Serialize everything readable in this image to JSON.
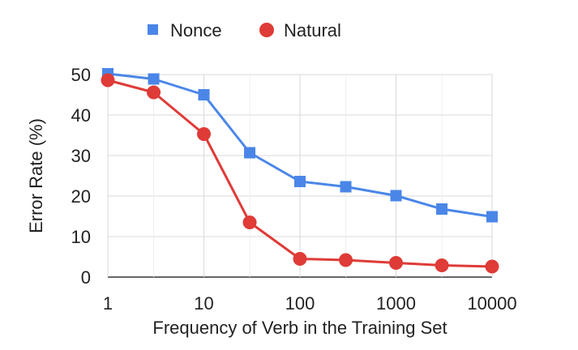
{
  "chart_data": {
    "type": "line",
    "title": "",
    "xlabel": "Frequency of Verb in the Training Set",
    "ylabel": "Error Rate (%)",
    "x_scale": "log",
    "x": [
      1,
      3,
      10,
      30,
      100,
      300,
      1000,
      3000,
      10000
    ],
    "x_ticks": [
      1,
      10,
      100,
      1000,
      10000
    ],
    "x_tick_labels": [
      "1",
      "10",
      "100",
      "1000",
      "10000"
    ],
    "y_ticks": [
      0,
      10,
      20,
      30,
      40,
      50
    ],
    "y_tick_labels": [
      "0",
      "10",
      "20",
      "30",
      "40",
      "50"
    ],
    "ylim": [
      0,
      50
    ],
    "xlim": [
      1,
      10000
    ],
    "grid": true,
    "legend_position": "top",
    "series": [
      {
        "name": "Nonce",
        "color": "#4a86e8",
        "marker": "square",
        "values": [
          50.2,
          48.9,
          45.0,
          30.7,
          23.6,
          22.3,
          20.1,
          16.8,
          14.9
        ]
      },
      {
        "name": "Natural",
        "color": "#df3b37",
        "marker": "circle",
        "values": [
          48.6,
          45.6,
          35.3,
          13.5,
          4.5,
          4.2,
          3.5,
          2.9,
          2.6
        ]
      }
    ]
  }
}
